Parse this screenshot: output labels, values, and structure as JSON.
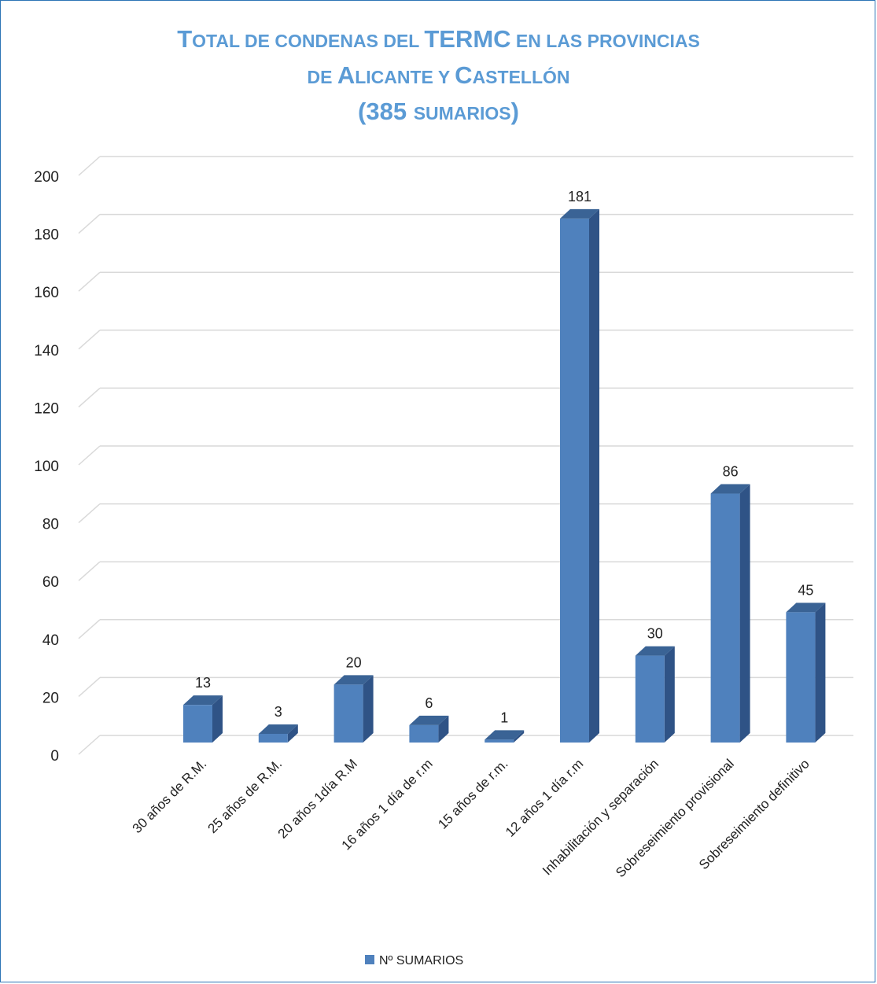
{
  "chart_data": {
    "type": "bar",
    "title_lines": [
      [
        {
          "text": "T",
          "size": "big"
        },
        {
          "text": "OTAL DE CONDENAS DEL ",
          "size": "small"
        },
        {
          "text": "TERMC",
          "size": "big"
        },
        {
          "text": " EN LAS PROVINCIAS",
          "size": "small"
        }
      ],
      [
        {
          "text": "DE ",
          "size": "small"
        },
        {
          "text": "A",
          "size": "big"
        },
        {
          "text": "LICANTE Y ",
          "size": "small"
        },
        {
          "text": "C",
          "size": "big"
        },
        {
          "text": "ASTELLÓN",
          "size": "small"
        }
      ],
      [
        {
          "text": "(385 ",
          "size": "big"
        },
        {
          "text": "SUMARIOS",
          "size": "small"
        },
        {
          "text": ")",
          "size": "big"
        }
      ]
    ],
    "categories": [
      "30 años de R.M.",
      "25 años de R.M.",
      "20 años 1día R.M",
      "16 años 1 día de r.m",
      "15 años de r.m.",
      "12 años 1 día r.m",
      "Inhabilitación y separación",
      "Sobreseimiento provisional",
      "Sobreseimiento definitivo"
    ],
    "series": [
      {
        "name": "Nº SUMARIOS",
        "values": [
          13,
          3,
          20,
          6,
          1,
          181,
          30,
          86,
          45
        ]
      }
    ],
    "ylim": [
      0,
      200
    ],
    "y_ticks": [
      "0",
      "20",
      "40",
      "60",
      "80",
      "100",
      "120",
      "140",
      "160",
      "180",
      "200"
    ],
    "grid": true,
    "legend_position": "bottom",
    "colors": {
      "front": "#4F81BD",
      "side": "#2F5386",
      "top": "#3A6395",
      "grid": "#D9D9D9",
      "title": "#5B9BD5"
    }
  }
}
